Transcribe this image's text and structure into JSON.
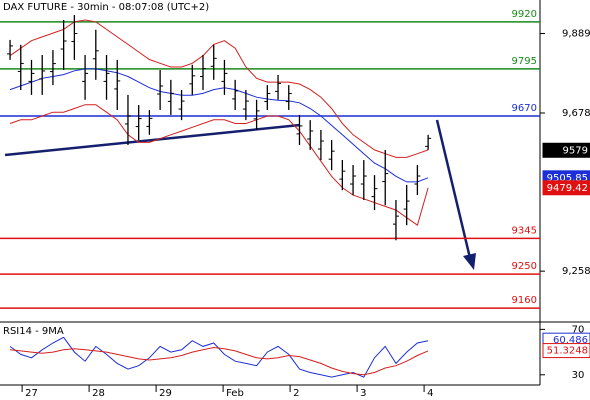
{
  "chart_data": [
    {
      "type": "ohlc",
      "title": "DAX FUTURE - 30min - 08:07:08 (UTC+2)",
      "x": [
        -0.18,
        -0.02,
        0.14,
        0.3,
        0.46,
        0.62,
        0.78,
        0.94,
        1.1,
        1.26,
        1.42,
        1.58,
        1.74,
        1.9,
        2.06,
        2.22,
        2.38,
        2.54,
        2.7,
        2.86,
        3.02,
        3.18,
        3.34,
        3.5,
        3.66,
        3.82,
        3.98,
        4.14,
        4.3,
        4.46,
        4.62,
        4.78,
        4.94,
        5.1,
        5.26,
        5.42,
        5.58,
        5.74,
        5.9,
        6.06
      ],
      "high": [
        9872,
        9859,
        9819,
        9832,
        9845,
        9925,
        9938,
        9832,
        9899,
        9832,
        9819,
        9726,
        9699,
        9686,
        9792,
        9766,
        9739,
        9806,
        9832,
        9859,
        9819,
        9766,
        9739,
        9713,
        9752,
        9779,
        9752,
        9673,
        9659,
        9633,
        9606,
        9553,
        9540,
        9553,
        9513,
        9580,
        9447,
        9487,
        9540,
        9620
      ],
      "low": [
        9819,
        9739,
        9726,
        9726,
        9752,
        9792,
        9819,
        9713,
        9766,
        9713,
        9686,
        9593,
        9606,
        9620,
        9686,
        9673,
        9659,
        9726,
        9739,
        9766,
        9726,
        9686,
        9659,
        9633,
        9686,
        9713,
        9686,
        9593,
        9580,
        9553,
        9526,
        9473,
        9460,
        9447,
        9420,
        9433,
        9340,
        9380,
        9460,
        9580
      ],
      "color": "#000000",
      "overlays": [
        {
          "color": "#1c2fd6",
          "values": [
            9740,
            9750,
            9760,
            9770,
            9775,
            9780,
            9790,
            9795,
            9795,
            9790,
            9785,
            9775,
            9760,
            9745,
            9735,
            9730,
            9725,
            9725,
            9730,
            9740,
            9745,
            9740,
            9730,
            9720,
            9715,
            9712,
            9710,
            9705,
            9690,
            9670,
            9645,
            9620,
            9595,
            9570,
            9545,
            9530,
            9510,
            9495,
            9495,
            9506
          ]
        },
        {
          "color": "#d42020",
          "values": [
            9830,
            9850,
            9870,
            9880,
            9890,
            9900,
            9920,
            9925,
            9920,
            9900,
            9880,
            9860,
            9840,
            9820,
            9810,
            9800,
            9800,
            9810,
            9830,
            9860,
            9870,
            9850,
            9800,
            9770,
            9760,
            9760,
            9760,
            9755,
            9740,
            9720,
            9690,
            9650,
            9620,
            9600,
            9580,
            9570,
            9560,
            9560,
            9570,
            9580
          ]
        },
        {
          "color": "#d42020",
          "values": [
            9650,
            9660,
            9660,
            9670,
            9680,
            9680,
            9690,
            9700,
            9700,
            9680,
            9660,
            9620,
            9600,
            9600,
            9610,
            9620,
            9630,
            9640,
            9650,
            9660,
            9660,
            9650,
            9650,
            9660,
            9670,
            9670,
            9660,
            9630,
            9590,
            9550,
            9510,
            9480,
            9460,
            9450,
            9440,
            9430,
            9420,
            9400,
            9380,
            9479
          ]
        }
      ],
      "levels": [
        {
          "value": 9920,
          "color": "#1a8a1a"
        },
        {
          "value": 9795,
          "color": "#1a8a1a"
        },
        {
          "value": 9670,
          "color": "#1c2fd6"
        },
        {
          "value": 9345,
          "color": "#e01010"
        },
        {
          "value": 9250,
          "color": "#e01010"
        },
        {
          "value": 9160,
          "color": "#e01010"
        }
      ],
      "price_tags": [
        {
          "value": 9579,
          "color": "#000000"
        },
        {
          "value": 9505.85,
          "color": "#1c2fd6"
        },
        {
          "value": 9479.42,
          "color": "#e01010"
        }
      ],
      "xlim": [
        -0.33,
        7.73
      ],
      "xticks": [
        {
          "value": 0,
          "label": "27"
        },
        {
          "value": 1,
          "label": "28"
        },
        {
          "value": 2,
          "label": "29"
        },
        {
          "value": 3,
          "label": "Feb"
        },
        {
          "value": 4,
          "label": "2"
        },
        {
          "value": 5,
          "label": "3"
        },
        {
          "value": 6,
          "label": "4"
        }
      ],
      "ylim": [
        9123,
        9978
      ],
      "yticks": [
        {
          "value": 9889,
          "label": "9,889"
        },
        {
          "value": 9678,
          "label": "9,678"
        },
        {
          "value": 9258,
          "label": "9,258"
        }
      ]
    },
    {
      "type": "line",
      "title": "RSI14 - 9MA",
      "series": [
        {
          "color": "#1c2fd6",
          "values": [
            55,
            48,
            45,
            52,
            58,
            63,
            50,
            42,
            55,
            48,
            40,
            35,
            38,
            45,
            55,
            50,
            52,
            60,
            55,
            58,
            48,
            42,
            40,
            38,
            50,
            55,
            48,
            35,
            32,
            30,
            28,
            30,
            32,
            28,
            45,
            55,
            40,
            50,
            58,
            60
          ]
        },
        {
          "color": "#d42020",
          "values": [
            52,
            51,
            50,
            49,
            50,
            52,
            53,
            52,
            51,
            50,
            48,
            46,
            44,
            43,
            44,
            45,
            47,
            50,
            52,
            54,
            53,
            51,
            48,
            45,
            44,
            45,
            47,
            46,
            43,
            40,
            36,
            33,
            31,
            30,
            32,
            36,
            38,
            42,
            47,
            51
          ]
        }
      ],
      "tags": [
        {
          "value": 60.486,
          "color": "#1c2fd6"
        },
        {
          "value": 51.3248,
          "color": "#e01010"
        }
      ],
      "ylim": [
        21,
        76.5
      ],
      "yticks": [
        70,
        30
      ]
    }
  ]
}
